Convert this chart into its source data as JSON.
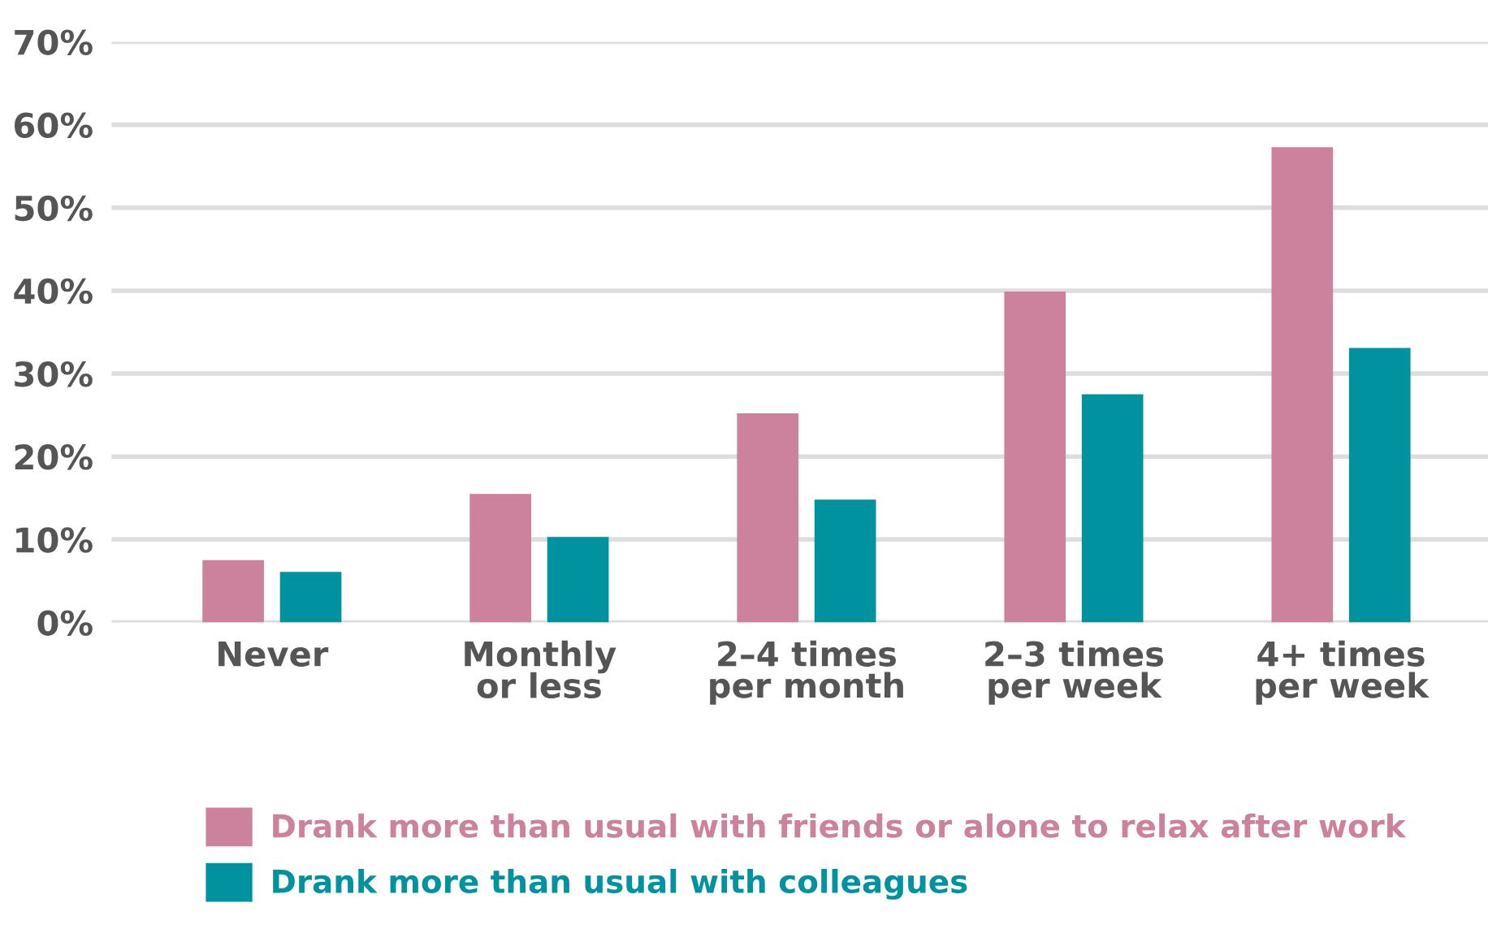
{
  "chart_data": {
    "type": "bar",
    "categories": [
      "Never",
      "Monthly\nor less",
      "2–4 times\nper month",
      "2–3 times\nper week",
      "4+ times\nper week"
    ],
    "series": [
      {
        "name": "Drank more than usual with friends or alone to relax after work",
        "color": "#cc829c",
        "values": [
          7.5,
          15.5,
          25.2,
          39.9,
          57.3
        ]
      },
      {
        "name": "Drank more than usual with colleagues",
        "color": "#00929f",
        "values": [
          6.1,
          10.3,
          14.8,
          27.5,
          33.1
        ]
      }
    ],
    "ylim": [
      0,
      70
    ],
    "yticks": [
      {
        "value": 0,
        "label": "0%"
      },
      {
        "value": 10,
        "label": "10%"
      },
      {
        "value": 20,
        "label": "20%"
      },
      {
        "value": 30,
        "label": "30%"
      },
      {
        "value": 40,
        "label": "40%"
      },
      {
        "value": 50,
        "label": "50%"
      },
      {
        "value": 60,
        "label": "60%"
      },
      {
        "value": 70,
        "label": "70%"
      }
    ],
    "grid": "y",
    "legend": "bottom"
  }
}
